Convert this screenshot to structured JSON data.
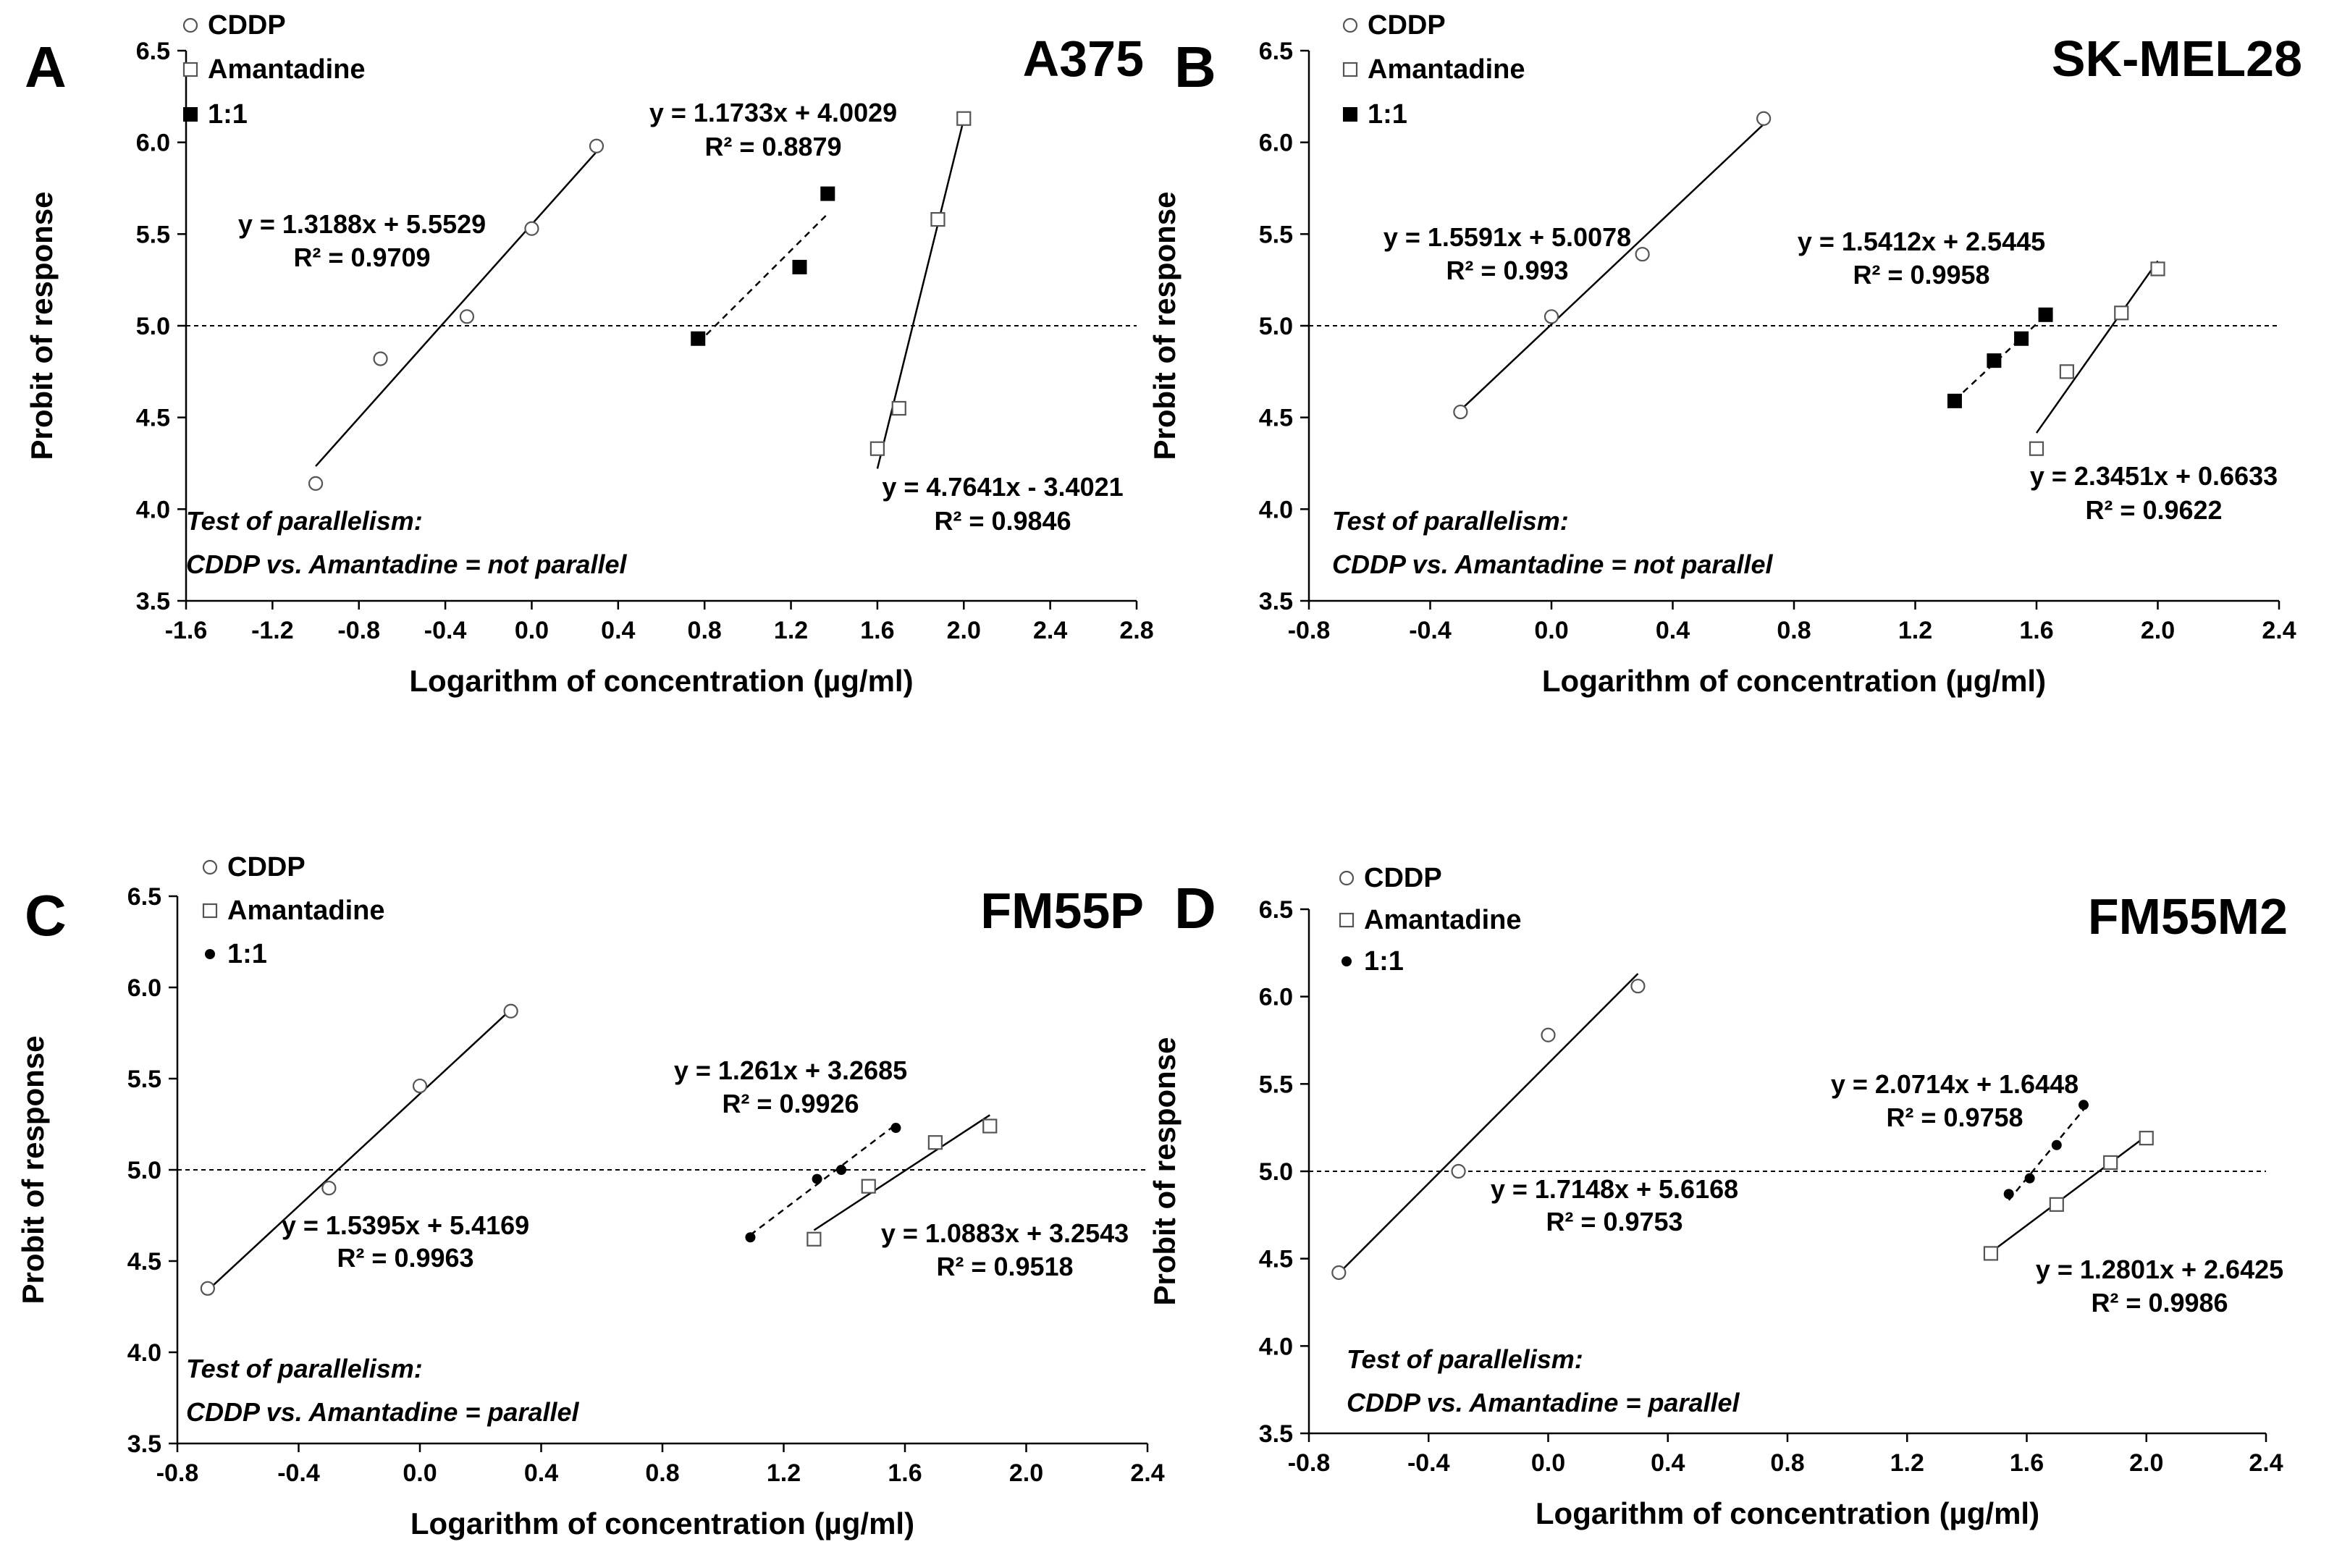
{
  "chart_data": [
    {
      "type": "scatter",
      "panel": "A",
      "title": "A375",
      "xlabel": "Logarithm of concentration (µg/ml)",
      "ylabel": "Probit of response",
      "xlim": [
        -1.6,
        2.8
      ],
      "ylim": [
        3.5,
        6.5
      ],
      "xticks": [
        -1.6,
        -1.2,
        -0.8,
        -0.4,
        0.0,
        0.4,
        0.8,
        1.2,
        1.6,
        2.0,
        2.4,
        2.8
      ],
      "xtick_labels": [
        "-1.6",
        "-1.2",
        "-0.8",
        "-0.4",
        "0.0",
        "0.4",
        "0.8",
        "1.2",
        "1.6",
        "2.0",
        "2.4",
        "2.8"
      ],
      "yticks": [
        3.5,
        4.0,
        4.5,
        5.0,
        5.5,
        6.0,
        6.5
      ],
      "ytick_labels": [
        "3.5",
        "4.0",
        "4.5",
        "5.0",
        "5.5",
        "6.0",
        "6.5"
      ],
      "grid": false,
      "legend_position": "top-left",
      "reference_line_y": 5.0,
      "series": [
        {
          "name": "CDDP",
          "marker": "open-circle",
          "line": "solid",
          "x": [
            -1.0,
            -0.7,
            -0.3,
            0.0,
            0.3
          ],
          "y": [
            4.14,
            4.82,
            5.05,
            5.53,
            5.98
          ],
          "fit": {
            "slope": 1.3188,
            "intercept": 5.5529,
            "x_range": [
              -1.0,
              0.3
            ]
          },
          "equation": "y = 1.3188x + 5.5529",
          "r2": "R² = 0.9709"
        },
        {
          "name": "Amantadine",
          "marker": "open-square",
          "line": "solid",
          "x": [
            1.6,
            1.7,
            1.88,
            2.0
          ],
          "y": [
            4.33,
            4.55,
            5.58,
            6.13
          ],
          "fit": {
            "slope": 4.7641,
            "intercept": -3.4021,
            "x_range": [
              1.6,
              2.0
            ]
          },
          "equation": "y = 4.7641x - 3.4021",
          "r2": "R² = 0.9846"
        },
        {
          "name": "1:1",
          "marker": "filled-square",
          "line": "dashed",
          "x": [
            0.77,
            1.24,
            1.37
          ],
          "y": [
            4.93,
            5.32,
            5.72
          ],
          "fit": {
            "slope": 1.1733,
            "intercept": 4.0029,
            "x_range": [
              0.77,
              1.37
            ]
          },
          "equation": "y = 1.1733x + 4.0029",
          "r2": "R² = 0.8879"
        }
      ],
      "notes": [
        "Test of parallelism:",
        "CDDP vs. Amantadine = not parallel"
      ]
    },
    {
      "type": "scatter",
      "panel": "B",
      "title": "SK-MEL28",
      "xlabel": "Logarithm of concentration (µg/ml)",
      "ylabel": "Probit of response",
      "xlim": [
        -0.8,
        2.4
      ],
      "ylim": [
        3.5,
        6.5
      ],
      "xticks": [
        -0.8,
        -0.4,
        0.0,
        0.4,
        0.8,
        1.2,
        1.6,
        2.0,
        2.4
      ],
      "xtick_labels": [
        "-0.8",
        "-0.4",
        "0.0",
        "0.4",
        "0.8",
        "1.2",
        "1.6",
        "2.0",
        "2.4"
      ],
      "yticks": [
        3.5,
        4.0,
        4.5,
        5.0,
        5.5,
        6.0,
        6.5
      ],
      "ytick_labels": [
        "3.5",
        "4.0",
        "4.5",
        "5.0",
        "5.5",
        "6.0",
        "6.5"
      ],
      "grid": false,
      "legend_position": "top-left",
      "reference_line_y": 5.0,
      "series": [
        {
          "name": "CDDP",
          "marker": "open-circle",
          "line": "solid",
          "x": [
            -0.3,
            0.0,
            0.3,
            0.7
          ],
          "y": [
            4.53,
            5.05,
            5.39,
            6.13
          ],
          "fit": {
            "slope": 1.5591,
            "intercept": 5.0078,
            "x_range": [
              -0.3,
              0.7
            ]
          },
          "equation": "y = 1.5591x + 5.0078",
          "r2": "R² = 0.993"
        },
        {
          "name": "Amantadine",
          "marker": "open-square",
          "line": "solid",
          "x": [
            1.6,
            1.7,
            1.88,
            2.0
          ],
          "y": [
            4.33,
            4.75,
            5.07,
            5.31
          ],
          "fit": {
            "slope": 2.3451,
            "intercept": 0.6633,
            "x_range": [
              1.6,
              2.0
            ]
          },
          "equation": "y = 2.3451x + 0.6633",
          "r2": "R² = 0.9622"
        },
        {
          "name": "1:1",
          "marker": "filled-square",
          "line": "dashed",
          "x": [
            1.33,
            1.46,
            1.55,
            1.63
          ],
          "y": [
            4.59,
            4.81,
            4.93,
            5.06
          ],
          "fit": {
            "slope": 1.5412,
            "intercept": 2.5445,
            "x_range": [
              1.33,
              1.63
            ]
          },
          "equation": "y = 1.5412x + 2.5445",
          "r2": "R² = 0.9958"
        }
      ],
      "notes": [
        "Test of parallelism:",
        "CDDP vs. Amantadine = not parallel"
      ]
    },
    {
      "type": "scatter",
      "panel": "C",
      "title": "FM55P",
      "xlabel": "Logarithm of concentration (µg/ml)",
      "ylabel": "Probit of response",
      "xlim": [
        -0.8,
        2.4
      ],
      "ylim": [
        3.5,
        6.5
      ],
      "xticks": [
        -0.8,
        -0.4,
        0.0,
        0.4,
        0.8,
        1.2,
        1.6,
        2.0,
        2.4
      ],
      "xtick_labels": [
        "-0.8",
        "-0.4",
        "0.0",
        "0.4",
        "0.8",
        "1.2",
        "1.6",
        "2.0",
        "2.4"
      ],
      "yticks": [
        3.5,
        4.0,
        4.5,
        5.0,
        5.5,
        6.0,
        6.5
      ],
      "ytick_labels": [
        "3.5",
        "4.0",
        "4.5",
        "5.0",
        "5.5",
        "6.0",
        "6.5"
      ],
      "grid": false,
      "legend_position": "top-left",
      "reference_line_y": 5.0,
      "series": [
        {
          "name": "CDDP",
          "marker": "open-circle",
          "line": "solid",
          "x": [
            -0.7,
            -0.3,
            0.0,
            0.3
          ],
          "y": [
            4.35,
            4.9,
            5.46,
            5.87
          ],
          "fit": {
            "slope": 1.5395,
            "intercept": 5.4169,
            "x_range": [
              -0.7,
              0.3
            ]
          },
          "equation": "y = 1.5395x + 5.4169",
          "r2": "R² = 0.9963"
        },
        {
          "name": "Amantadine",
          "marker": "open-square",
          "line": "solid",
          "x": [
            1.3,
            1.48,
            1.7,
            1.88
          ],
          "y": [
            4.62,
            4.91,
            5.15,
            5.24
          ],
          "fit": {
            "slope": 1.0883,
            "intercept": 3.2543,
            "x_range": [
              1.3,
              1.88
            ]
          },
          "equation": "y = 1.0883x + 3.2543",
          "r2": "R² = 0.9518"
        },
        {
          "name": "1:1",
          "marker": "filled-dot",
          "line": "dashed",
          "x": [
            1.09,
            1.31,
            1.39,
            1.57
          ],
          "y": [
            4.63,
            4.95,
            5.0,
            5.23
          ],
          "fit": {
            "slope": 1.261,
            "intercept": 3.2685,
            "x_range": [
              1.09,
              1.57
            ]
          },
          "equation": "y = 1.261x + 3.2685",
          "r2": "R² = 0.9926"
        }
      ],
      "notes": [
        "Test of parallelism:",
        "CDDP vs. Amantadine = parallel"
      ]
    },
    {
      "type": "scatter",
      "panel": "D",
      "title": "FM55M2",
      "xlabel": "Logarithm of concentration (µg/ml)",
      "ylabel": "Probit of response",
      "xlim": [
        -0.8,
        2.4
      ],
      "ylim": [
        3.5,
        6.5
      ],
      "xticks": [
        -0.8,
        -0.4,
        0.0,
        0.4,
        0.8,
        1.2,
        1.6,
        2.0,
        2.4
      ],
      "xtick_labels": [
        "-0.8",
        "-0.4",
        "0.0",
        "0.4",
        "0.8",
        "1.2",
        "1.6",
        "2.0",
        "2.4"
      ],
      "yticks": [
        3.5,
        4.0,
        4.5,
        5.0,
        5.5,
        6.0,
        6.5
      ],
      "ytick_labels": [
        "3.5",
        "4.0",
        "4.5",
        "5.0",
        "5.5",
        "6.0",
        "6.5"
      ],
      "grid": false,
      "legend_position": "top-left",
      "reference_line_y": 5.0,
      "series": [
        {
          "name": "CDDP",
          "marker": "open-circle",
          "line": "solid",
          "x": [
            -0.7,
            -0.3,
            0.0,
            0.3
          ],
          "y": [
            4.42,
            5.0,
            5.78,
            6.06
          ],
          "fit": {
            "slope": 1.7148,
            "intercept": 5.6168,
            "x_range": [
              -0.7,
              0.3
            ]
          },
          "equation": "y = 1.7148x + 5.6168",
          "r2": "R² = 0.9753"
        },
        {
          "name": "Amantadine",
          "marker": "open-square",
          "line": "solid",
          "x": [
            1.48,
            1.7,
            1.88,
            2.0
          ],
          "y": [
            4.53,
            4.81,
            5.05,
            5.19
          ],
          "fit": {
            "slope": 1.2801,
            "intercept": 2.6425,
            "x_range": [
              1.48,
              2.0
            ]
          },
          "equation": "y = 1.2801x + 2.6425",
          "r2": "R² = 0.9986"
        },
        {
          "name": "1:1",
          "marker": "filled-dot",
          "line": "dashed",
          "x": [
            1.54,
            1.61,
            1.7,
            1.79
          ],
          "y": [
            4.87,
            4.96,
            5.15,
            5.38
          ],
          "fit": {
            "slope": 2.0714,
            "intercept": 1.6448,
            "x_range": [
              1.54,
              1.79
            ]
          },
          "equation": "y = 2.0714x + 1.6448",
          "r2": "R² = 0.9758"
        }
      ],
      "notes": [
        "Test of parallelism:",
        "CDDP vs. Amantadine = parallel"
      ]
    }
  ]
}
